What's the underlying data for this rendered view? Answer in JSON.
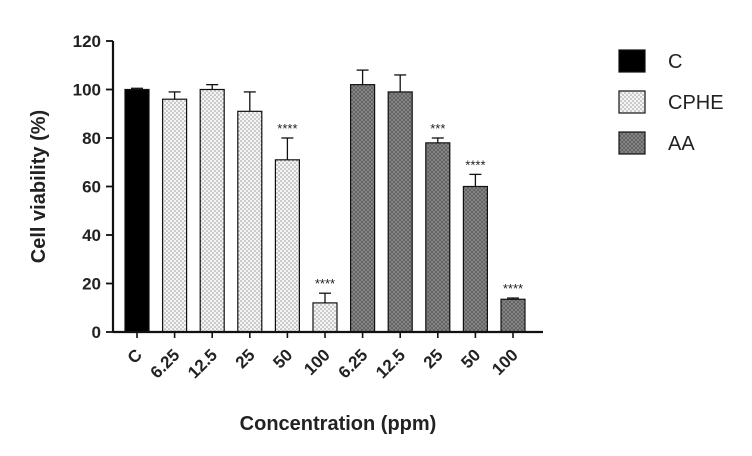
{
  "chart_data": {
    "type": "bar",
    "xlabel": "Concentration (ppm)",
    "ylabel": "Cell viability (%)",
    "ylim": [
      0,
      120
    ],
    "yticks": [
      0,
      20,
      40,
      60,
      80,
      100,
      120
    ],
    "grid": false,
    "legend_position": "top-right",
    "legend": [
      {
        "name": "C",
        "color": "#000000",
        "pattern": "solid"
      },
      {
        "name": "CPHE",
        "color": "#f0f0f0",
        "pattern": "dotted"
      },
      {
        "name": "AA",
        "color": "#888888",
        "pattern": "crosshatch"
      }
    ],
    "bars": [
      {
        "category": "C",
        "series": "C",
        "value": 100,
        "error": 0.5,
        "sig": ""
      },
      {
        "category": "6.25",
        "series": "CPHE",
        "value": 96,
        "error": 3,
        "sig": ""
      },
      {
        "category": "12.5",
        "series": "CPHE",
        "value": 100,
        "error": 2,
        "sig": ""
      },
      {
        "category": "25",
        "series": "CPHE",
        "value": 91,
        "error": 8,
        "sig": ""
      },
      {
        "category": "50",
        "series": "CPHE",
        "value": 71,
        "error": 9,
        "sig": "****"
      },
      {
        "category": "100",
        "series": "CPHE",
        "value": 12,
        "error": 4,
        "sig": "****"
      },
      {
        "category": "6.25",
        "series": "AA",
        "value": 102,
        "error": 6,
        "sig": ""
      },
      {
        "category": "12.5",
        "series": "AA",
        "value": 99,
        "error": 7,
        "sig": ""
      },
      {
        "category": "25",
        "series": "AA",
        "value": 78,
        "error": 2,
        "sig": "***"
      },
      {
        "category": "50",
        "series": "AA",
        "value": 60,
        "error": 5,
        "sig": "****"
      },
      {
        "category": "100",
        "series": "AA",
        "value": 13.5,
        "error": 0.5,
        "sig": "****"
      }
    ]
  }
}
